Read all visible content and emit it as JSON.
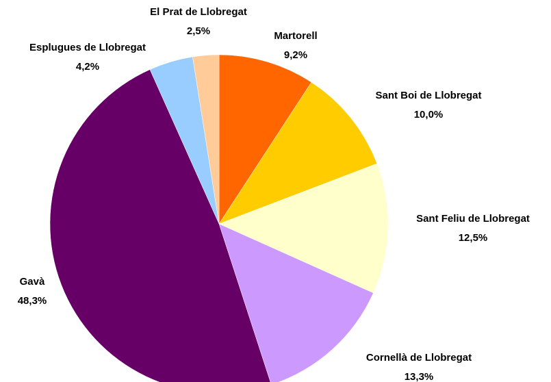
{
  "chart_data": {
    "type": "pie",
    "categories": [
      "Martorell",
      "Sant Boi de Llobregat",
      "Sant Feliu de Llobregat",
      "Cornellà de Llobregat",
      "Gavà",
      "Esplugues de Llobregat",
      "El Prat de Llobregat"
    ],
    "values": [
      9.2,
      10.0,
      12.5,
      13.3,
      48.3,
      4.2,
      2.5
    ],
    "value_labels": [
      "9,2%",
      "10,0%",
      "12,5%",
      "13,3%",
      "48,3%",
      "4,2%",
      "2,5%"
    ],
    "colors": [
      "#ff6600",
      "#ffcc00",
      "#ffffcc",
      "#cc99ff",
      "#660066",
      "#99ccff",
      "#ffcc99"
    ]
  }
}
